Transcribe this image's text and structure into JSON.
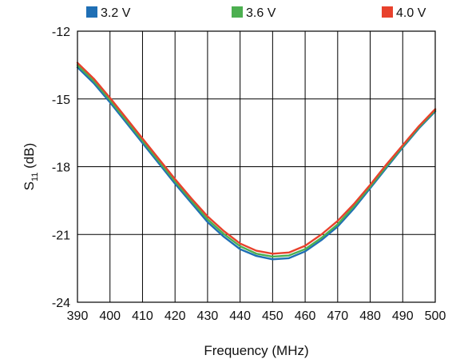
{
  "chart_data": {
    "type": "line",
    "xlabel": "Frequency (MHz)",
    "ylabel": {
      "main": "S",
      "sub": "11",
      "rest": " (dB)"
    },
    "xlim": [
      390,
      500
    ],
    "ylim": [
      -24,
      -12
    ],
    "xticks": [
      "390",
      "400",
      "410",
      "420",
      "430",
      "440",
      "450",
      "460",
      "470",
      "480",
      "490",
      "500"
    ],
    "yticks": [
      "-12",
      "-15",
      "-18",
      "-21",
      "-24"
    ],
    "grid": true,
    "legend_position": "top",
    "x": [
      390,
      395,
      400,
      405,
      410,
      415,
      420,
      425,
      430,
      435,
      440,
      445,
      450,
      455,
      460,
      465,
      470,
      475,
      480,
      485,
      490,
      495,
      500
    ],
    "series": [
      {
        "name": "3.2 V",
        "color": "#1f6fb5",
        "values": [
          -13.6,
          -14.3,
          -15.15,
          -16.05,
          -16.95,
          -17.85,
          -18.75,
          -19.6,
          -20.45,
          -21.1,
          -21.65,
          -21.95,
          -22.1,
          -22.05,
          -21.75,
          -21.25,
          -20.65,
          -19.85,
          -18.95,
          -18.05,
          -17.15,
          -16.3,
          -15.55
        ]
      },
      {
        "name": "3.6 V",
        "color": "#4caf50",
        "values": [
          -13.5,
          -14.2,
          -15.05,
          -15.95,
          -16.85,
          -17.75,
          -18.65,
          -19.5,
          -20.33,
          -20.98,
          -21.52,
          -21.85,
          -21.98,
          -21.93,
          -21.65,
          -21.15,
          -20.55,
          -19.75,
          -18.88,
          -17.98,
          -17.1,
          -16.25,
          -15.5
        ]
      },
      {
        "name": "4.0 V",
        "color": "#e8412c",
        "values": [
          -13.4,
          -14.1,
          -14.95,
          -15.85,
          -16.75,
          -17.65,
          -18.55,
          -19.4,
          -20.2,
          -20.85,
          -21.4,
          -21.72,
          -21.85,
          -21.8,
          -21.5,
          -21.0,
          -20.4,
          -19.65,
          -18.8,
          -17.9,
          -17.05,
          -16.2,
          -15.45
        ]
      }
    ]
  }
}
